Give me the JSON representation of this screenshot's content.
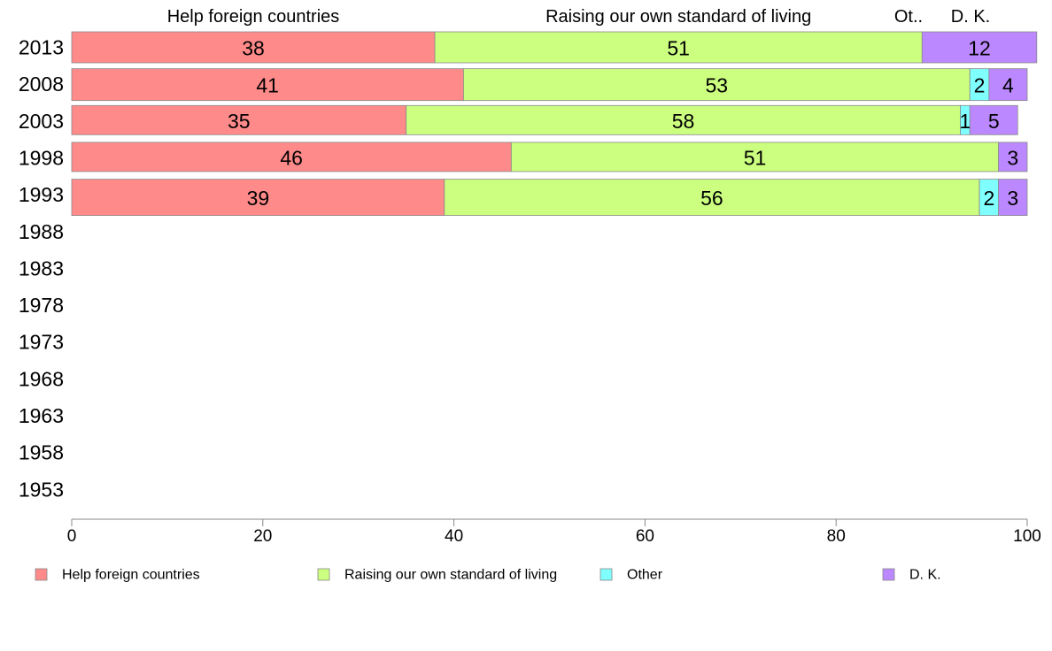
{
  "chart_data": {
    "type": "bar",
    "orientation": "horizontal",
    "stacked": true,
    "categories": [
      "2013",
      "2008",
      "2003",
      "1998",
      "1993",
      "1988",
      "1983",
      "1978",
      "1973",
      "1968",
      "1963",
      "1958",
      "1953"
    ],
    "series": [
      {
        "name": "Help foreign countries",
        "color": "#ff8a8a",
        "values": [
          38,
          41,
          35,
          46,
          39,
          null,
          null,
          null,
          null,
          null,
          null,
          null,
          null
        ]
      },
      {
        "name": "Raising our own standard of living",
        "color": "#ccff80",
        "values": [
          51,
          53,
          58,
          51,
          56,
          null,
          null,
          null,
          null,
          null,
          null,
          null,
          null
        ]
      },
      {
        "name": "Other",
        "color": "#80ffff",
        "values": [
          0,
          2,
          1,
          0,
          2,
          null,
          null,
          null,
          null,
          null,
          null,
          null,
          null
        ]
      },
      {
        "name": "D. K.",
        "color": "#bb88ff",
        "values": [
          12,
          4,
          5,
          3,
          3,
          null,
          null,
          null,
          null,
          null,
          null,
          null,
          null
        ]
      }
    ],
    "header_labels": [
      {
        "text": "Help foreign countries",
        "series": 0
      },
      {
        "text": "Raising our own standard of living",
        "series": 1
      },
      {
        "text": "Ot..",
        "series": 2
      },
      {
        "text": "D. K.",
        "series": 3
      }
    ],
    "xlim": [
      0,
      100
    ],
    "xticks": [
      0,
      20,
      40,
      60,
      80,
      100
    ],
    "xlabel": "",
    "ylabel": "",
    "title": "",
    "grid": false,
    "legend_position": "bottom"
  }
}
